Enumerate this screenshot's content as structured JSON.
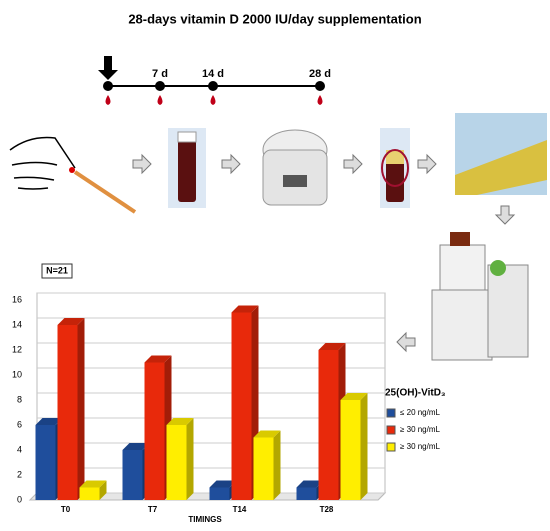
{
  "title": "28-days vitamin D 2000 IU/day supplementation",
  "timeline": [
    "7 d",
    "14 d",
    "28 d"
  ],
  "chart_data": {
    "type": "bar",
    "annotation": "N=21",
    "x_label": "TIMINGS",
    "legend_title": "25(OH)-VitD₃",
    "categories": [
      "T0",
      "T7",
      "T14",
      "T28"
    ],
    "series": [
      {
        "name": "≤ 20 ng/mL",
        "color": "#1f4e9c",
        "values": [
          6,
          4,
          1,
          1
        ]
      },
      {
        "name": "≥ 30 ng/mL",
        "color": "#e8290b",
        "values": [
          14,
          11,
          15,
          12
        ]
      },
      {
        "name": "≥ 30 ng/mL",
        "color": "#ffee00",
        "values": [
          1,
          6,
          5,
          8
        ]
      }
    ],
    "ylim": [
      0,
      16
    ],
    "yticks": [
      0,
      2,
      4,
      6,
      8,
      10,
      12,
      14,
      16
    ],
    "grid": true
  }
}
